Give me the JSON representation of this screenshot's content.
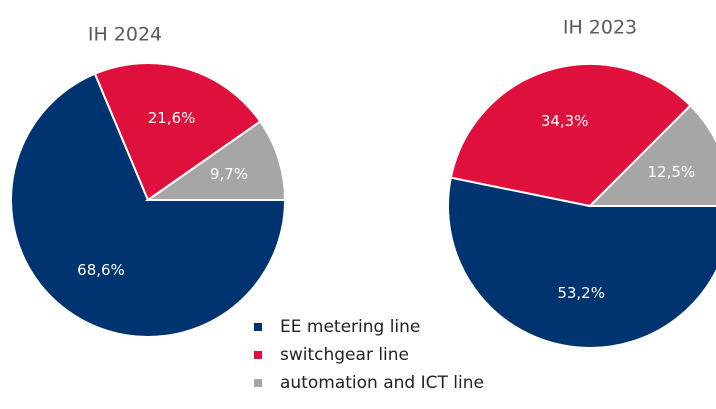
{
  "chart_data": [
    {
      "type": "pie",
      "title": "IH 2024",
      "values": [
        68.6,
        21.6,
        9.7
      ],
      "value_labels": [
        "68,6%",
        "21,6%",
        "9,7%"
      ]
    },
    {
      "type": "pie",
      "title": "IH 2023",
      "values": [
        53.2,
        34.3,
        12.5
      ],
      "value_labels": [
        "53,2%",
        "34,3%",
        "12,5%"
      ]
    }
  ],
  "legend": {
    "labels": [
      "EE metering line",
      "switchgear line",
      "automation and ICT line"
    ],
    "colors": [
      "#003471",
      "#e0103c",
      "#a6a6a6"
    ]
  }
}
